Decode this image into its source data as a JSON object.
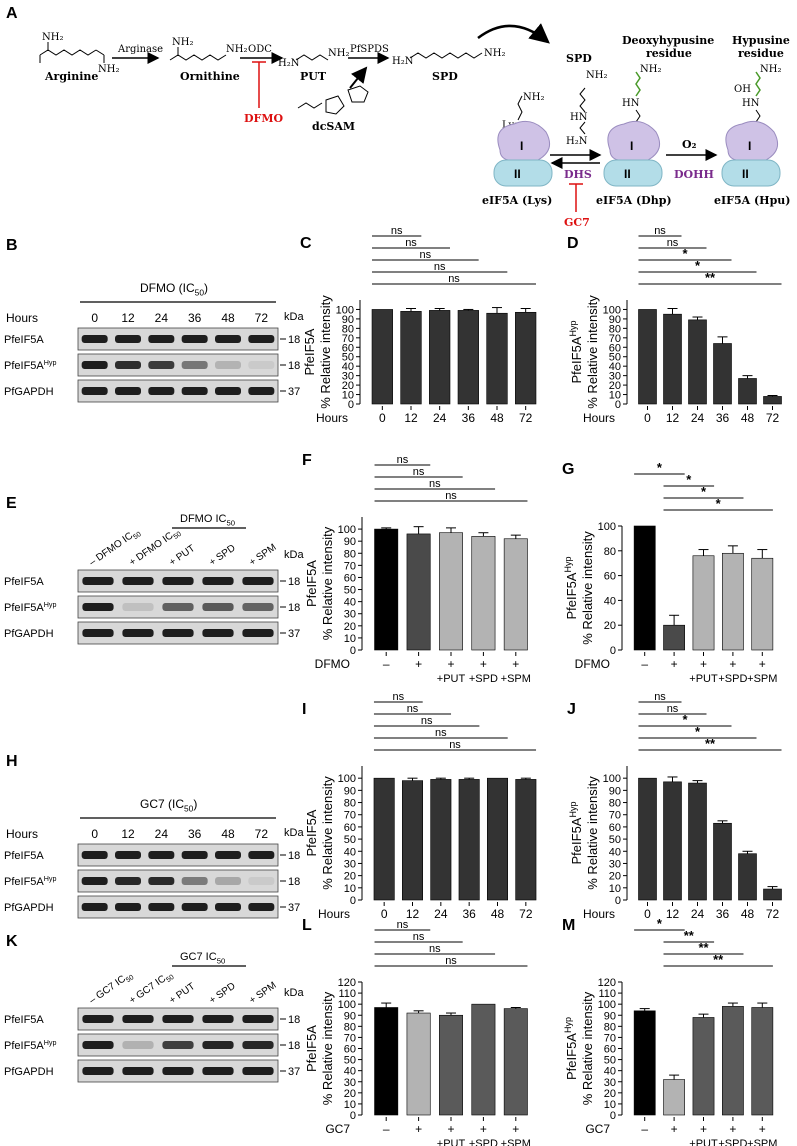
{
  "panelA": {
    "label": "A",
    "arginine": "Arginine",
    "arginase": "Arginase",
    "ornithine": "Ornithine",
    "odc": "ODC",
    "dfmo": "DFMO",
    "put": "PUT",
    "pfspds": "PfSPDS",
    "spd": "SPD",
    "dcsam": "dcSAM",
    "spd_top": "SPD",
    "deoxyhypusine": [
      "Deoxyhypusine",
      "residue"
    ],
    "hypusine": [
      "Hypusine",
      "residue"
    ],
    "lys": "Lys",
    "nh2": "NH₂",
    "h2n": "H₂N",
    "hn": "HN",
    "oh": "OH",
    "o2": "O₂",
    "dhs": "DHS",
    "dohh": "DOHH",
    "gc7": "GC7",
    "domain_I": "I",
    "domain_II": "II",
    "eif_lys": "eIF5A (Lys)",
    "eif_dhp": "eIF5A (Dhp)",
    "eif_hpu": "eIF5A (Hpu)"
  },
  "blots": [
    {
      "label": "B",
      "treatment": "DFMO (IC",
      "treatment_sub": "50",
      "treatment_end": ")",
      "row_header": "Hours",
      "lanes": [
        "0",
        "12",
        "24",
        "36",
        "48",
        "72"
      ],
      "kda": "kDa",
      "rows": [
        {
          "name": "PfeIF5A",
          "sup": "",
          "kda": "18",
          "levels": [
            1,
            1,
            1,
            1,
            1,
            1
          ]
        },
        {
          "name": "PfeIF5A",
          "sup": "Hyp",
          "kda": "18",
          "levels": [
            1,
            0.95,
            0.9,
            0.65,
            0.3,
            0.1
          ]
        },
        {
          "name": "PfGAPDH",
          "sup": "",
          "kda": "37",
          "levels": [
            1,
            1,
            1,
            1,
            1,
            1
          ]
        }
      ]
    },
    {
      "label": "E",
      "treatment": "DFMO IC",
      "treatment_sub": "50",
      "treatment_end": "",
      "lanes": [
        "– DFMO IC",
        "+ DFMO IC",
        "+ PUT",
        "+ SPD",
        "+ SPM"
      ],
      "lane_subs": [
        "50",
        "50",
        "",
        "",
        ""
      ],
      "kda": "kDa",
      "rows": [
        {
          "name": "PfeIF5A",
          "sup": "",
          "kda": "18",
          "levels": [
            1,
            1,
            1,
            1,
            1
          ]
        },
        {
          "name": "PfeIF5A",
          "sup": "Hyp",
          "kda": "18",
          "levels": [
            1,
            0.2,
            0.75,
            0.78,
            0.74
          ]
        },
        {
          "name": "PfGAPDH",
          "sup": "",
          "kda": "37",
          "levels": [
            1,
            1,
            1,
            1,
            1
          ]
        }
      ]
    },
    {
      "label": "H",
      "treatment": "GC7 (IC",
      "treatment_sub": "50",
      "treatment_end": ")",
      "row_header": "Hours",
      "lanes": [
        "0",
        "12",
        "24",
        "36",
        "48",
        "72"
      ],
      "kda": "kDa",
      "rows": [
        {
          "name": "PfeIF5A",
          "sup": "",
          "kda": "18",
          "levels": [
            1,
            1,
            1,
            1,
            1,
            1
          ]
        },
        {
          "name": "PfeIF5A",
          "sup": "Hyp",
          "kda": "18",
          "levels": [
            1,
            0.97,
            0.96,
            0.63,
            0.38,
            0.1
          ]
        },
        {
          "name": "PfGAPDH",
          "sup": "",
          "kda": "37",
          "levels": [
            1,
            1,
            1,
            1,
            1,
            1
          ]
        }
      ]
    },
    {
      "label": "K",
      "treatment": "GC7 IC",
      "treatment_sub": "50",
      "treatment_end": "",
      "lanes": [
        "– GC7 IC",
        "+ GC7 IC",
        "+ PUT",
        "+ SPD",
        "+ SPM"
      ],
      "lane_subs": [
        "50",
        "50",
        "",
        "",
        ""
      ],
      "kda": "kDa",
      "rows": [
        {
          "name": "PfeIF5A",
          "sup": "",
          "kda": "18",
          "levels": [
            1,
            1,
            1,
            1,
            1
          ]
        },
        {
          "name": "PfeIF5A",
          "sup": "Hyp",
          "kda": "18",
          "levels": [
            1,
            0.32,
            0.88,
            0.98,
            0.97
          ]
        },
        {
          "name": "PfGAPDH",
          "sup": "",
          "kda": "37",
          "levels": [
            1,
            1,
            1,
            1,
            1
          ]
        }
      ]
    }
  ],
  "chart_data": [
    {
      "panel": "C",
      "type": "bar",
      "ylabel_top": "PfeIF5A",
      "ylabel_sup": "",
      "ylabel": "% Relative intensity",
      "xlabel": "Hours",
      "categories": [
        "0",
        "12",
        "24",
        "36",
        "48",
        "72"
      ],
      "values": [
        100,
        98,
        99,
        99,
        96,
        97
      ],
      "errors": [
        0,
        3,
        2,
        1,
        6,
        4
      ],
      "ylim": [
        0,
        110
      ],
      "yticks": [
        0,
        10,
        20,
        30,
        40,
        50,
        60,
        70,
        80,
        90,
        100
      ],
      "colors": [
        "#333333",
        "#333333",
        "#333333",
        "#333333",
        "#333333",
        "#333333"
      ],
      "sig": [
        {
          "from": 0,
          "to": 1,
          "text": "ns"
        },
        {
          "from": 0,
          "to": 2,
          "text": "ns"
        },
        {
          "from": 0,
          "to": 3,
          "text": "ns"
        },
        {
          "from": 0,
          "to": 4,
          "text": "ns"
        },
        {
          "from": 0,
          "to": 5,
          "text": "ns"
        }
      ]
    },
    {
      "panel": "D",
      "type": "bar",
      "ylabel_top": "PfeIF5A",
      "ylabel_sup": "Hyp",
      "ylabel": "% Relative intensity",
      "xlabel": "Hours",
      "categories": [
        "0",
        "12",
        "24",
        "36",
        "48",
        "72"
      ],
      "values": [
        100,
        95,
        89,
        64,
        27,
        8
      ],
      "errors": [
        0,
        6,
        3,
        7,
        3,
        1
      ],
      "ylim": [
        0,
        110
      ],
      "yticks": [
        0,
        10,
        20,
        30,
        40,
        50,
        60,
        70,
        80,
        90,
        100
      ],
      "colors": [
        "#333333",
        "#333333",
        "#333333",
        "#333333",
        "#333333",
        "#333333"
      ],
      "sig": [
        {
          "from": 0,
          "to": 1,
          "text": "ns"
        },
        {
          "from": 0,
          "to": 2,
          "text": "ns"
        },
        {
          "from": 0,
          "to": 3,
          "text": "*"
        },
        {
          "from": 0,
          "to": 4,
          "text": "*"
        },
        {
          "from": 0,
          "to": 5,
          "text": "**"
        }
      ]
    },
    {
      "panel": "F",
      "type": "bar",
      "ylabel_top": "PfeIF5A",
      "ylabel_sup": "",
      "ylabel": "% Relative intensity",
      "xlabel": "DFMO",
      "categories": [
        "–",
        "+",
        "+",
        "+",
        "+"
      ],
      "subcategories": [
        "",
        "",
        "+PUT",
        "+SPD",
        "+SPM"
      ],
      "values": [
        100,
        96,
        97,
        94,
        92
      ],
      "errors": [
        1,
        6,
        4,
        3,
        3
      ],
      "ylim": [
        0,
        110
      ],
      "yticks": [
        0,
        10,
        20,
        30,
        40,
        50,
        60,
        70,
        80,
        90,
        100
      ],
      "colors": [
        "#000000",
        "#4a4a4a",
        "#b3b3b3",
        "#b3b3b3",
        "#b3b3b3"
      ],
      "sig": [
        {
          "from": 0,
          "to": 1,
          "text": "ns"
        },
        {
          "from": 0,
          "to": 2,
          "text": "ns"
        },
        {
          "from": 0,
          "to": 3,
          "text": "ns"
        },
        {
          "from": 0,
          "to": 4,
          "text": "ns"
        }
      ]
    },
    {
      "panel": "G",
      "type": "bar",
      "ylabel_top": "PfeIF5A",
      "ylabel_sup": "Hyp",
      "ylabel": "% Relative intensity",
      "xlabel": "DFMO",
      "categories": [
        "–",
        "+",
        "+",
        "+",
        "+"
      ],
      "subcategories": [
        "",
        "",
        "+PUT",
        "+SPD",
        "+SPM"
      ],
      "values": [
        100,
        20,
        76,
        78,
        74
      ],
      "errors": [
        0,
        8,
        5,
        6,
        7
      ],
      "ylim": [
        0,
        100
      ],
      "yticks": [
        0,
        20,
        40,
        60,
        80,
        100
      ],
      "colors": [
        "#000000",
        "#4a4a4a",
        "#b3b3b3",
        "#b3b3b3",
        "#b3b3b3"
      ],
      "sig": [
        {
          "from": 0,
          "to": 1,
          "text": "*"
        },
        {
          "from": 1,
          "to": 2,
          "text": "*"
        },
        {
          "from": 1,
          "to": 3,
          "text": "*"
        },
        {
          "from": 1,
          "to": 4,
          "text": "*"
        }
      ]
    },
    {
      "panel": "I",
      "type": "bar",
      "ylabel_top": "PfeIF5A",
      "ylabel_sup": "",
      "ylabel": "% Relative intensity",
      "xlabel": "Hours",
      "categories": [
        "0",
        "12",
        "24",
        "36",
        "48",
        "72"
      ],
      "values": [
        100,
        98,
        99,
        99,
        100,
        99
      ],
      "errors": [
        0,
        2,
        1,
        1,
        0,
        1
      ],
      "ylim": [
        0,
        110
      ],
      "yticks": [
        0,
        10,
        20,
        30,
        40,
        50,
        60,
        70,
        80,
        90,
        100
      ],
      "colors": [
        "#333333",
        "#333333",
        "#333333",
        "#333333",
        "#333333",
        "#333333"
      ],
      "sig": [
        {
          "from": 0,
          "to": 1,
          "text": "ns"
        },
        {
          "from": 0,
          "to": 2,
          "text": "ns"
        },
        {
          "from": 0,
          "to": 3,
          "text": "ns"
        },
        {
          "from": 0,
          "to": 4,
          "text": "ns"
        },
        {
          "from": 0,
          "to": 5,
          "text": "ns"
        }
      ]
    },
    {
      "panel": "J",
      "type": "bar",
      "ylabel_top": "PfeIF5A",
      "ylabel_sup": "Hyp",
      "ylabel": "% Relative intensity",
      "xlabel": "Hours",
      "categories": [
        "0",
        "12",
        "24",
        "36",
        "48",
        "72"
      ],
      "values": [
        100,
        97,
        96,
        63,
        38,
        9
      ],
      "errors": [
        0,
        4,
        2,
        2,
        2,
        2
      ],
      "ylim": [
        0,
        110
      ],
      "yticks": [
        0,
        10,
        20,
        30,
        40,
        50,
        60,
        70,
        80,
        90,
        100
      ],
      "colors": [
        "#333333",
        "#333333",
        "#333333",
        "#333333",
        "#333333",
        "#333333"
      ],
      "sig": [
        {
          "from": 0,
          "to": 1,
          "text": "ns"
        },
        {
          "from": 0,
          "to": 2,
          "text": "ns"
        },
        {
          "from": 0,
          "to": 3,
          "text": "*"
        },
        {
          "from": 0,
          "to": 4,
          "text": "*"
        },
        {
          "from": 0,
          "to": 5,
          "text": "**"
        }
      ]
    },
    {
      "panel": "L",
      "type": "bar",
      "ylabel_top": "PfeIF5A",
      "ylabel_sup": "",
      "ylabel": "% Relative intensity",
      "xlabel": "GC7",
      "categories": [
        "–",
        "+",
        "+",
        "+",
        "+"
      ],
      "subcategories": [
        "",
        "",
        "+PUT",
        "+SPD",
        "+SPM"
      ],
      "values": [
        97,
        92,
        90,
        100,
        96
      ],
      "errors": [
        4,
        2,
        2,
        0,
        1
      ],
      "ylim": [
        0,
        120
      ],
      "yticks": [
        0,
        10,
        20,
        30,
        40,
        50,
        60,
        70,
        80,
        90,
        100,
        110,
        120
      ],
      "colors": [
        "#000000",
        "#b3b3b3",
        "#5a5a5a",
        "#5a5a5a",
        "#5a5a5a"
      ],
      "sig": [
        {
          "from": 0,
          "to": 1,
          "text": "ns"
        },
        {
          "from": 0,
          "to": 2,
          "text": "ns"
        },
        {
          "from": 0,
          "to": 3,
          "text": "ns"
        },
        {
          "from": 0,
          "to": 4,
          "text": "ns"
        }
      ]
    },
    {
      "panel": "M",
      "type": "bar",
      "ylabel_top": "PfeIF5A",
      "ylabel_sup": "Hyp",
      "ylabel": "% Relative intensity",
      "xlabel": "GC7",
      "categories": [
        "–",
        "+",
        "+",
        "+",
        "+"
      ],
      "subcategories": [
        "",
        "",
        "+PUT",
        "+SPD",
        "+SPM"
      ],
      "values": [
        94,
        32,
        88,
        98,
        97
      ],
      "errors": [
        2,
        4,
        3,
        3,
        4
      ],
      "ylim": [
        0,
        120
      ],
      "yticks": [
        0,
        10,
        20,
        30,
        40,
        50,
        60,
        70,
        80,
        90,
        100,
        110,
        120
      ],
      "colors": [
        "#000000",
        "#b3b3b3",
        "#5a5a5a",
        "#5a5a5a",
        "#5a5a5a"
      ],
      "sig": [
        {
          "from": 0,
          "to": 1,
          "text": "*"
        },
        {
          "from": 1,
          "to": 2,
          "text": "**"
        },
        {
          "from": 1,
          "to": 3,
          "text": "**"
        },
        {
          "from": 1,
          "to": 4,
          "text": "**"
        }
      ]
    }
  ]
}
